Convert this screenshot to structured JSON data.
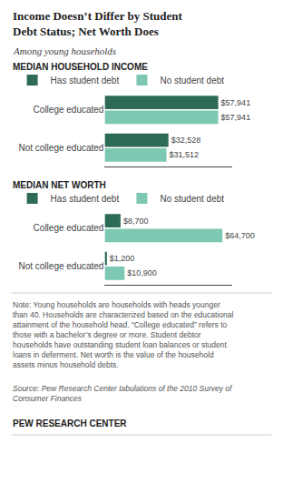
{
  "title": "Income Doesn’t Differ by Student\nDebt Status; Net Worth Does",
  "subtitle": "Among young households",
  "annotations": [
    "Note: Young households are households with heads younger\nthan 40. Households are characterized based on the educational\nattainment of the household head. “College educated” refers to\nthose with a bachelor’s degree or more. Student debtor\nhouseholds have outstanding student loan balances or student\nloans in deferment. Net worth is the value of the household\nassets minus household debts.",
    "Source: Pew Research Center tabulations of the 2010 Survey of\nConsumer Finances",
    "PEW RESEARCH CENTER"
  ],
  "chart_data": [
    {
      "type": "bar",
      "title": "MEDIAN HOUSEHOLD INCOME",
      "orientation": "horizontal",
      "categories": [
        "College educated",
        "Not college educated"
      ],
      "series": [
        {
          "name": "Has student debt",
          "color": "#2d6b57",
          "values": [
            57941,
            32528
          ],
          "value_labels": [
            "$57,941",
            "$32,528"
          ]
        },
        {
          "name": "No student debt",
          "color": "#7dc8b2",
          "values": [
            57941,
            31512
          ],
          "value_labels": [
            "$57,941",
            "$31,512"
          ]
        }
      ],
      "xlim": [
        0,
        65000
      ],
      "data_labels": true,
      "tick_labels": "y",
      "grid": false
    },
    {
      "type": "bar",
      "title": "MEDIAN NET WORTH",
      "orientation": "horizontal",
      "categories": [
        "College educated",
        "Not college educated"
      ],
      "series": [
        {
          "name": "Has student debt",
          "color": "#2d6b57",
          "values": [
            8700,
            1200
          ],
          "value_labels": [
            "$8,700",
            "$1,200"
          ]
        },
        {
          "name": "No student debt",
          "color": "#7dc8b2",
          "values": [
            64700,
            10900
          ],
          "value_labels": [
            "$64,700",
            "$10,900"
          ]
        }
      ],
      "xlim": [
        0,
        70000
      ],
      "data_labels": true,
      "tick_labels": "y",
      "grid": false
    }
  ]
}
